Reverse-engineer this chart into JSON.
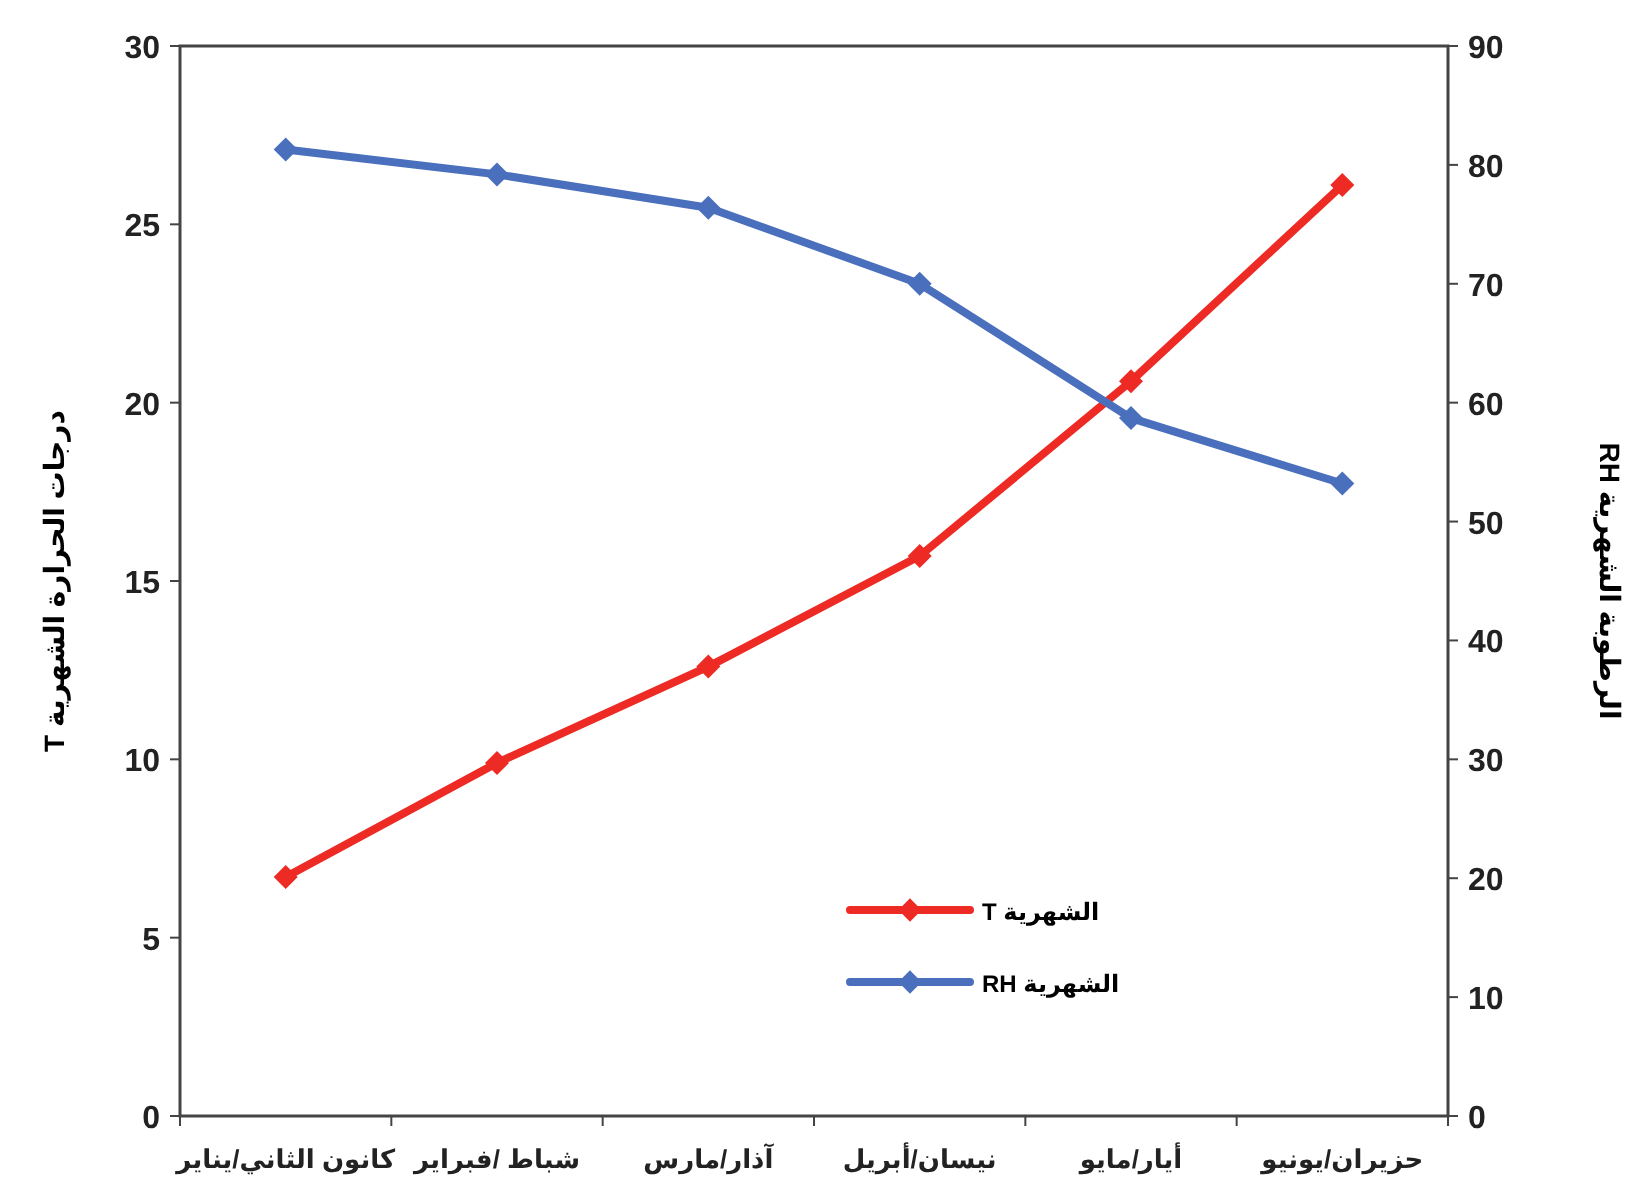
{
  "chart_data": {
    "type": "line",
    "categories": [
      "كانون الثاني/يناير",
      "شباط /فبراير",
      "آذار/مارس",
      "نيسان/أبريل",
      "أيار/مايو",
      "حزيران/يونيو"
    ],
    "series": [
      {
        "name": "T الشهرية",
        "color": "#ee2a24",
        "values": [
          6.7,
          9.9,
          12.6,
          15.7,
          20.6,
          26.1
        ]
      },
      {
        "name": "RH الشهرية",
        "color": "#4a6fbd",
        "axis": "y2",
        "values": [
          81.3,
          79.2,
          76.4,
          70.0,
          58.7,
          53.2
        ]
      }
    ],
    "ylabel": "درجات الحرارة الشهرية T",
    "y2label": "الرطوبة الشهرية RH",
    "ylim": [
      0,
      30
    ],
    "yticks": [
      0,
      5,
      10,
      15,
      20,
      25,
      30
    ],
    "y2lim": [
      0,
      90
    ],
    "y2ticks": [
      0,
      10,
      20,
      30,
      40,
      50,
      60,
      70,
      80,
      90
    ],
    "marker": "diamond",
    "line_style": "solid",
    "grid": false,
    "legend": "bottom"
  }
}
